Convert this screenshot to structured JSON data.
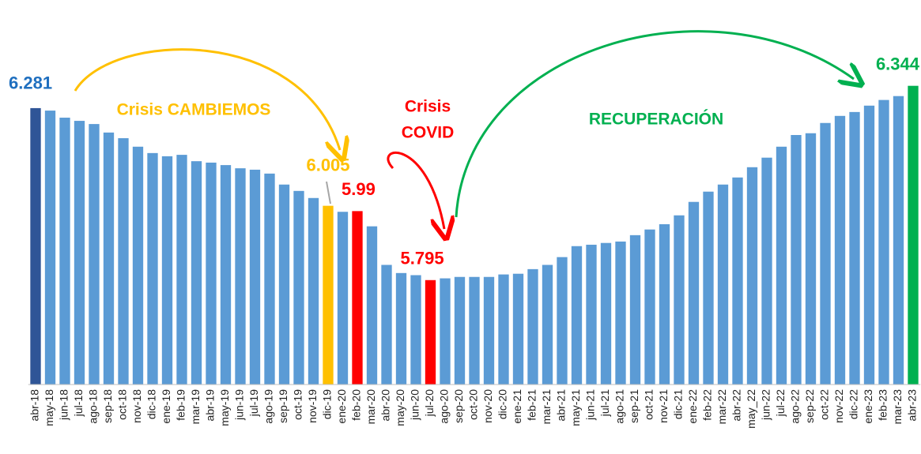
{
  "chart_data": {
    "type": "bar",
    "categories": [
      "abr-18",
      "may-18",
      "jun-18",
      "jul-18",
      "ago-18",
      "sep-18",
      "oct-18",
      "nov-18",
      "dic-18",
      "ene-19",
      "feb-19",
      "mar-19",
      "abr-19",
      "may-19",
      "jun-19",
      "jul-19",
      "ago-19",
      "sep-19",
      "oct-19",
      "nov-19",
      "dic-19",
      "ene-20",
      "feb-20",
      "mar-20",
      "abr-20",
      "may-20",
      "jun-20",
      "jul-20",
      "ago-20",
      "sep-20",
      "oct-20",
      "nov-20",
      "dic-20",
      "ene-21",
      "feb-21",
      "mar-21",
      "abr-21",
      "may-21",
      "jun-21",
      "jul-21",
      "ago-21",
      "sep-21",
      "oct-21",
      "nov-21",
      "dic-21",
      "ene-22",
      "feb-22",
      "mar-22",
      "abr-22",
      "may_22",
      "jun-22",
      "jul-22",
      "ago-22",
      "sep-22",
      "oct-22",
      "nov-22",
      "dic-22",
      "ene-23",
      "feb-23",
      "mar-23",
      "abr-23"
    ],
    "values": [
      6.281,
      6.274,
      6.254,
      6.245,
      6.236,
      6.212,
      6.196,
      6.172,
      6.154,
      6.145,
      6.149,
      6.131,
      6.127,
      6.12,
      6.111,
      6.107,
      6.096,
      6.065,
      6.047,
      6.027,
      6.005,
      5.988,
      5.99,
      5.947,
      5.838,
      5.815,
      5.809,
      5.795,
      5.8,
      5.804,
      5.804,
      5.804,
      5.811,
      5.813,
      5.826,
      5.838,
      5.86,
      5.891,
      5.895,
      5.9,
      5.904,
      5.922,
      5.938,
      5.953,
      5.978,
      6.016,
      6.045,
      6.065,
      6.085,
      6.114,
      6.141,
      6.172,
      6.205,
      6.21,
      6.239,
      6.259,
      6.27,
      6.288,
      6.304,
      6.315,
      6.344
    ],
    "color": "#5b9bd5",
    "colors": [
      "#2f5597",
      "#5b9bd5",
      "#5b9bd5",
      "#5b9bd5",
      "#5b9bd5",
      "#5b9bd5",
      "#5b9bd5",
      "#5b9bd5",
      "#5b9bd5",
      "#5b9bd5",
      "#5b9bd5",
      "#5b9bd5",
      "#5b9bd5",
      "#5b9bd5",
      "#5b9bd5",
      "#5b9bd5",
      "#5b9bd5",
      "#5b9bd5",
      "#5b9bd5",
      "#5b9bd5",
      "#ffc000",
      "#5b9bd5",
      "#ff0000",
      "#5b9bd5",
      "#5b9bd5",
      "#5b9bd5",
      "#5b9bd5",
      "#ff0000",
      "#5b9bd5",
      "#5b9bd5",
      "#5b9bd5",
      "#5b9bd5",
      "#5b9bd5",
      "#5b9bd5",
      "#5b9bd5",
      "#5b9bd5",
      "#5b9bd5",
      "#5b9bd5",
      "#5b9bd5",
      "#5b9bd5",
      "#5b9bd5",
      "#5b9bd5",
      "#5b9bd5",
      "#5b9bd5",
      "#5b9bd5",
      "#5b9bd5",
      "#5b9bd5",
      "#5b9bd5",
      "#5b9bd5",
      "#5b9bd5",
      "#5b9bd5",
      "#5b9bd5",
      "#5b9bd5",
      "#5b9bd5",
      "#5b9bd5",
      "#5b9bd5",
      "#5b9bd5",
      "#5b9bd5",
      "#5b9bd5",
      "#5b9bd5",
      "#00b050"
    ],
    "ylim": [
      5.5,
      6.35
    ],
    "annotations": [
      {
        "lines": [
          "Crisis CAMBIEMOS"
        ],
        "color": "#ffc000"
      },
      {
        "lines": [
          "Crisis",
          "COVID"
        ],
        "color": "#ff0000"
      },
      {
        "lines": [
          "RECUPERACIÓN"
        ],
        "color": "#00b050"
      }
    ]
  }
}
